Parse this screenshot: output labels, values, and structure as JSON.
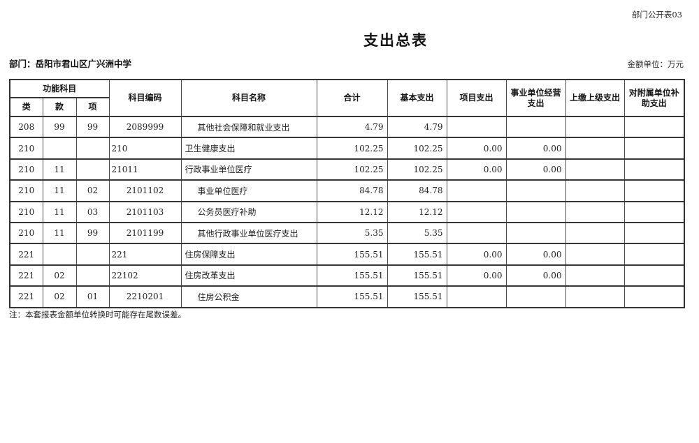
{
  "page": {
    "doc_code": "部门公开表03",
    "title": "支出总表",
    "department_label": "部门：岳阳市君山区广兴洲中学",
    "unit_label": "金额单位：万元",
    "footnote": "注：本套报表金额单位转换时可能存在尾数误差。"
  },
  "table": {
    "header": {
      "functional_group": "功能科目",
      "category": "类",
      "section": "款",
      "item": "项",
      "code": "科目编码",
      "name": "科目名称",
      "total": "合计",
      "basic": "基本支出",
      "project": "项目支出",
      "operating": "事业单位经营支出",
      "upper": "上缴上级支出",
      "subsidy": "对附属单位补助支出"
    },
    "rows": [
      {
        "category_code": "208",
        "section_code": "99",
        "item_code": "99",
        "code": "2089999",
        "name": "其他社会保障和就业支出",
        "leaf": true,
        "total": "4.79",
        "basic": "4.79",
        "project": "",
        "operating": "",
        "upper": "",
        "subsidy": ""
      },
      {
        "category_code": "210",
        "section_code": "",
        "item_code": "",
        "code": "210",
        "name": "卫生健康支出",
        "leaf": false,
        "total": "102.25",
        "basic": "102.25",
        "project": "0.00",
        "operating": "0.00",
        "upper": "",
        "subsidy": ""
      },
      {
        "category_code": "210",
        "section_code": "11",
        "item_code": "",
        "code": "21011",
        "name": "行政事业单位医疗",
        "leaf": false,
        "total": "102.25",
        "basic": "102.25",
        "project": "0.00",
        "operating": "0.00",
        "upper": "",
        "subsidy": ""
      },
      {
        "category_code": "210",
        "section_code": "11",
        "item_code": "02",
        "code": "2101102",
        "name": "事业单位医疗",
        "leaf": true,
        "total": "84.78",
        "basic": "84.78",
        "project": "",
        "operating": "",
        "upper": "",
        "subsidy": ""
      },
      {
        "category_code": "210",
        "section_code": "11",
        "item_code": "03",
        "code": "2101103",
        "name": "公务员医疗补助",
        "leaf": true,
        "total": "12.12",
        "basic": "12.12",
        "project": "",
        "operating": "",
        "upper": "",
        "subsidy": ""
      },
      {
        "category_code": "210",
        "section_code": "11",
        "item_code": "99",
        "code": "2101199",
        "name": "其他行政事业单位医疗支出",
        "leaf": true,
        "total": "5.35",
        "basic": "5.35",
        "project": "",
        "operating": "",
        "upper": "",
        "subsidy": ""
      },
      {
        "category_code": "221",
        "section_code": "",
        "item_code": "",
        "code": "221",
        "name": "住房保障支出",
        "leaf": false,
        "total": "155.51",
        "basic": "155.51",
        "project": "0.00",
        "operating": "0.00",
        "upper": "",
        "subsidy": ""
      },
      {
        "category_code": "221",
        "section_code": "02",
        "item_code": "",
        "code": "22102",
        "name": "住房改革支出",
        "leaf": false,
        "total": "155.51",
        "basic": "155.51",
        "project": "0.00",
        "operating": "0.00",
        "upper": "",
        "subsidy": ""
      },
      {
        "category_code": "221",
        "section_code": "02",
        "item_code": "01",
        "code": "2210201",
        "name": "住房公积金",
        "leaf": true,
        "total": "155.51",
        "basic": "155.51",
        "project": "",
        "operating": "",
        "upper": "",
        "subsidy": ""
      }
    ]
  }
}
